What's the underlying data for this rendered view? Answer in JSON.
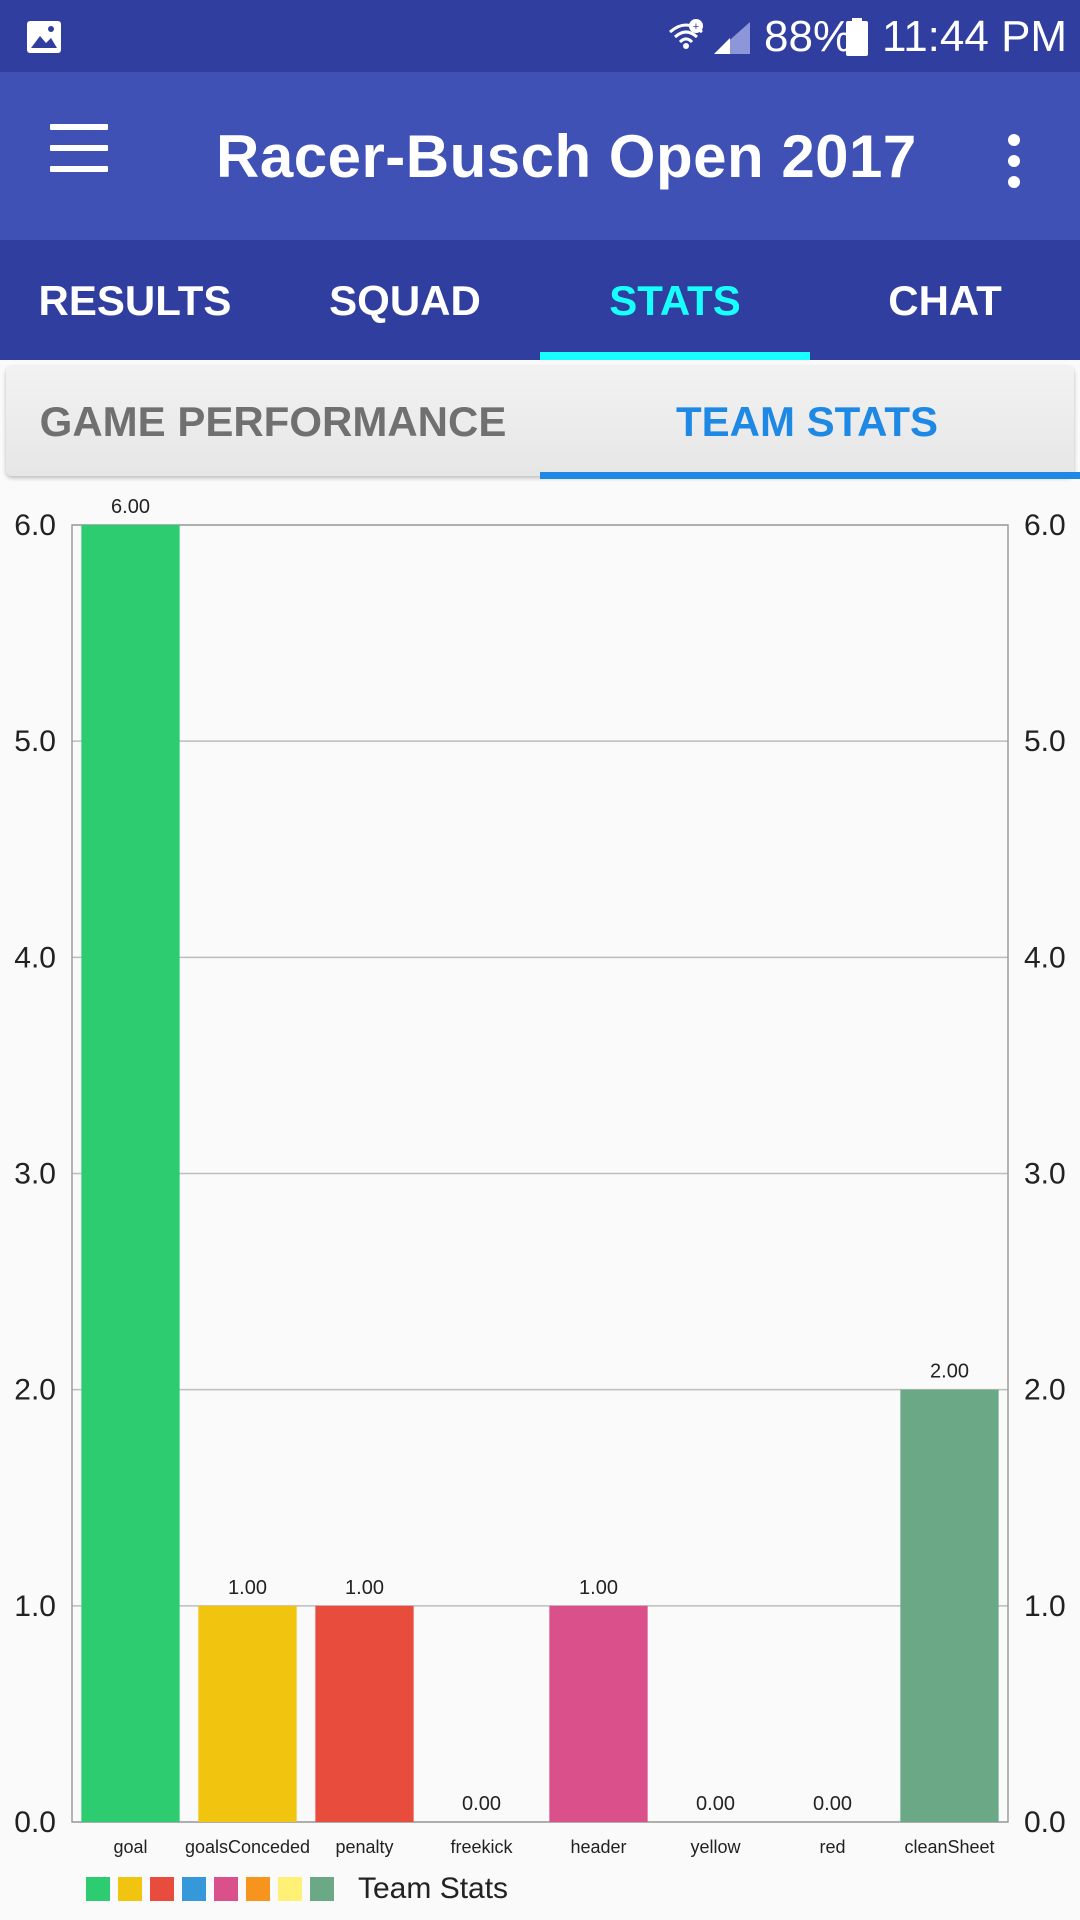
{
  "status_bar": {
    "battery": "88%",
    "time": "11:44 PM",
    "icons": [
      "gallery-icon",
      "wifi-icon",
      "signal-icon",
      "battery-icon"
    ]
  },
  "app_bar": {
    "title": "Racer-Busch Open 2017",
    "icons": [
      "menu-icon",
      "overflow-icon"
    ]
  },
  "main_tabs": [
    {
      "label": "RESULTS",
      "active": false
    },
    {
      "label": "SQUAD",
      "active": false
    },
    {
      "label": "STATS",
      "active": true
    },
    {
      "label": "CHAT",
      "active": false
    }
  ],
  "sub_tabs": [
    {
      "label": "GAME PERFORMANCE",
      "active": false
    },
    {
      "label": "TEAM STATS",
      "active": true
    }
  ],
  "colors": {
    "status_bar": "#303f9f",
    "app_bar": "#3f51b5",
    "main_tab_active": "#18ffff",
    "sub_tab_active": "#1e88e5"
  },
  "chart_data": {
    "type": "bar",
    "categories": [
      "goal",
      "goalsConceded",
      "penalty",
      "freekick",
      "header",
      "yellow",
      "red",
      "cleanSheet"
    ],
    "values": [
      6,
      1,
      1,
      0,
      1,
      0,
      0,
      2
    ],
    "value_labels": [
      "6.00",
      "1.00",
      "1.00",
      "0.00",
      "1.00",
      "0.00",
      "0.00",
      "2.00"
    ],
    "colors": [
      "#2ecc71",
      "#f1c40f",
      "#e74c3c",
      "#3498db",
      "#d9508a",
      "#f7941d",
      "#fff176",
      "#6aa886"
    ],
    "ylim": [
      0,
      6
    ],
    "yticks": [
      "0.0",
      "1.0",
      "2.0",
      "3.0",
      "4.0",
      "5.0",
      "6.0"
    ],
    "grid": true,
    "legend_position": "bottom-left",
    "legend_label": "Team Stats"
  }
}
